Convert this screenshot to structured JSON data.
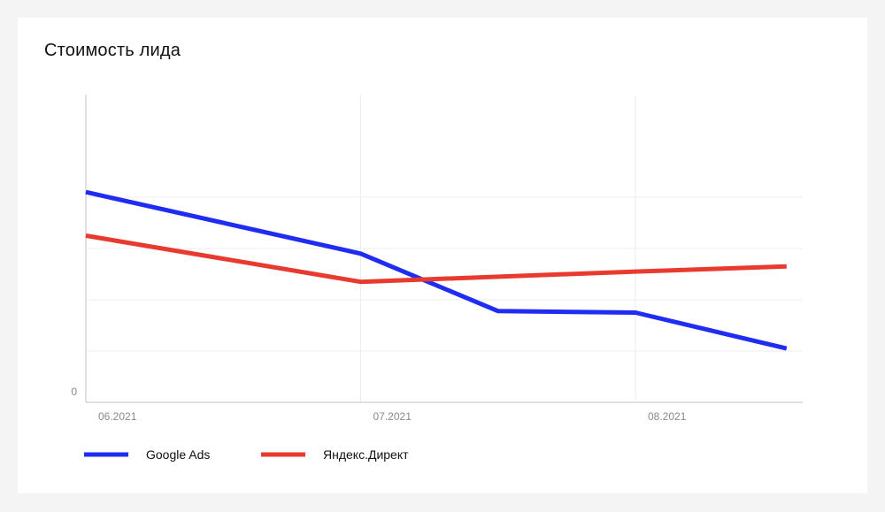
{
  "chart_data": {
    "type": "line",
    "title": "Стоимость лида",
    "xlabel": "",
    "ylabel": "",
    "x": [
      "06.2021",
      "07.2021",
      "08.2021"
    ],
    "y_tick_labels": [
      "0"
    ],
    "ylim": [
      0,
      6
    ],
    "grid": true,
    "legend": "bottom-left",
    "series": [
      {
        "name": "Google Ads",
        "color": "#1f2cf2",
        "points": [
          [
            0,
            4.1
          ],
          [
            1,
            2.9
          ],
          [
            1.5,
            1.78
          ],
          [
            2,
            1.75
          ],
          [
            2.55,
            1.05
          ]
        ]
      },
      {
        "name": "Яндекс.Директ",
        "color": "#e83a2f",
        "points": [
          [
            0,
            3.25
          ],
          [
            1,
            2.35
          ],
          [
            2,
            2.55
          ],
          [
            2.55,
            2.65
          ]
        ]
      }
    ]
  }
}
